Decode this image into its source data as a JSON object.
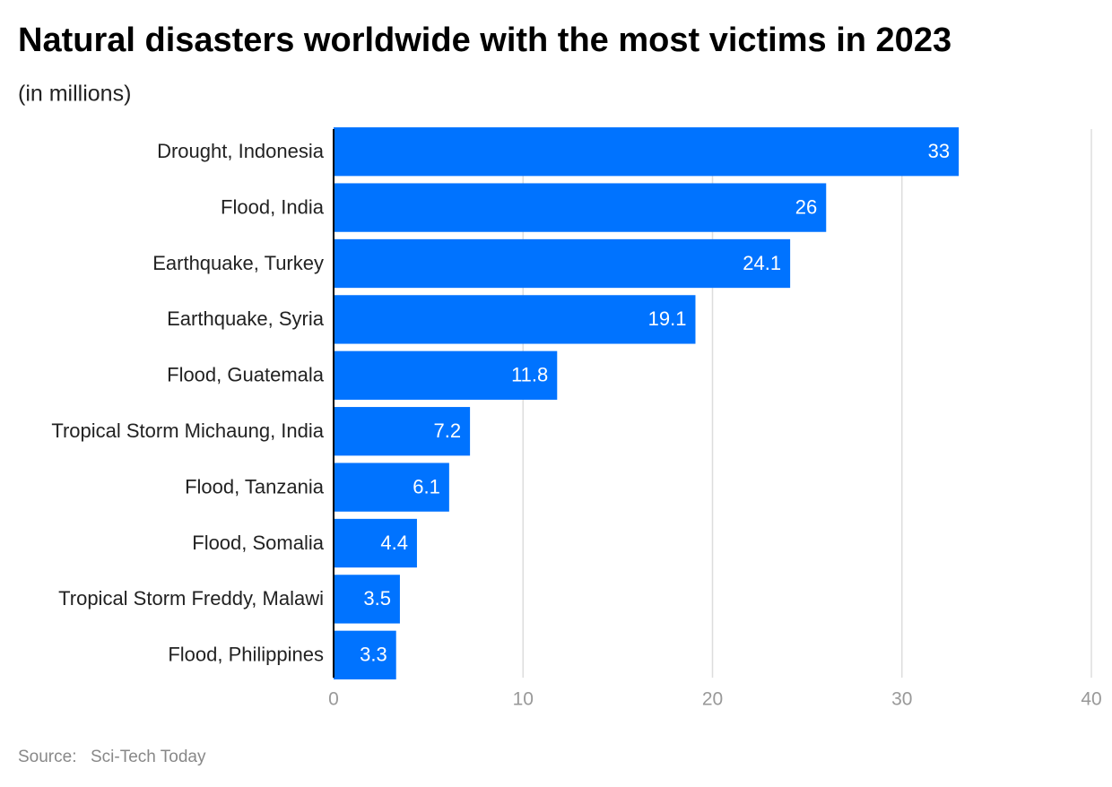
{
  "chart_data": {
    "type": "bar",
    "orientation": "horizontal",
    "title": "Natural disasters worldwide with the most victims in 2023",
    "subtitle": "(in millions)",
    "categories": [
      "Drought, Indonesia",
      "Flood, India",
      "Earthquake, Turkey",
      "Earthquake, Syria",
      "Flood, Guatemala",
      "Tropical Storm Michaung, India",
      "Flood, Tanzania",
      "Flood, Somalia",
      "Tropical Storm Freddy, Malawi",
      "Flood, Philippines"
    ],
    "values": [
      33,
      26,
      24.1,
      19.1,
      11.8,
      7.2,
      6.1,
      4.4,
      3.5,
      3.3
    ],
    "color": "#0073ff",
    "xlim": [
      0,
      40
    ],
    "xticks": [
      0,
      10,
      20,
      30,
      40
    ],
    "grid": true,
    "source": {
      "label": "Source:",
      "text": "Sci-Tech Today"
    }
  }
}
